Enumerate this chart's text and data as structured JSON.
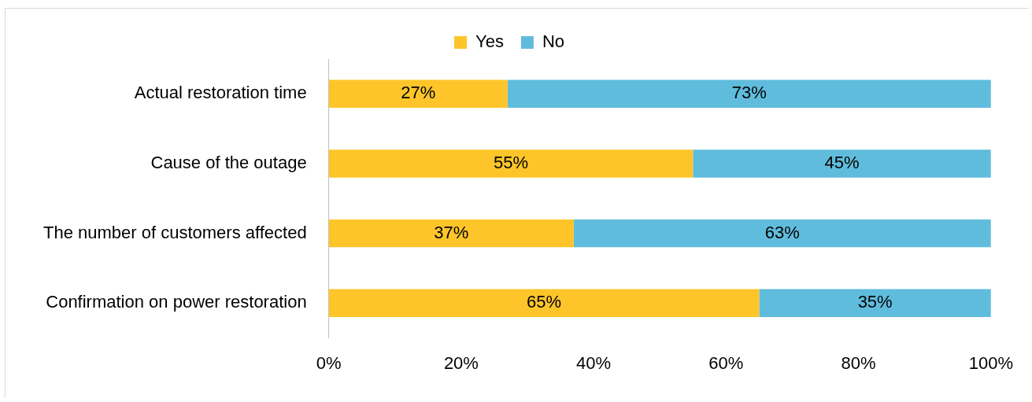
{
  "chart_data": {
    "type": "bar",
    "orientation": "horizontal",
    "stacked": true,
    "categories": [
      "Actual restoration time",
      "Cause of the outage",
      "The number of customers affected",
      "Confirmation on power restoration"
    ],
    "series": [
      {
        "name": "Yes",
        "color": "#fdc52a",
        "values": [
          27,
          55,
          37,
          65
        ],
        "value_labels": [
          "27%",
          "55%",
          "37%",
          "65%"
        ]
      },
      {
        "name": "No",
        "color": "#60bcdc",
        "values": [
          73,
          45,
          63,
          35
        ],
        "value_labels": [
          "73%",
          "45%",
          "63%",
          "35%"
        ]
      }
    ],
    "xlim": [
      0,
      100
    ],
    "xticks": [
      {
        "value": 0,
        "label": "0%"
      },
      {
        "value": 20,
        "label": "20%"
      },
      {
        "value": 40,
        "label": "40%"
      },
      {
        "value": 60,
        "label": "60%"
      },
      {
        "value": 80,
        "label": "80%"
      },
      {
        "value": 100,
        "label": "100%"
      }
    ],
    "grid": false,
    "legend": "top"
  }
}
